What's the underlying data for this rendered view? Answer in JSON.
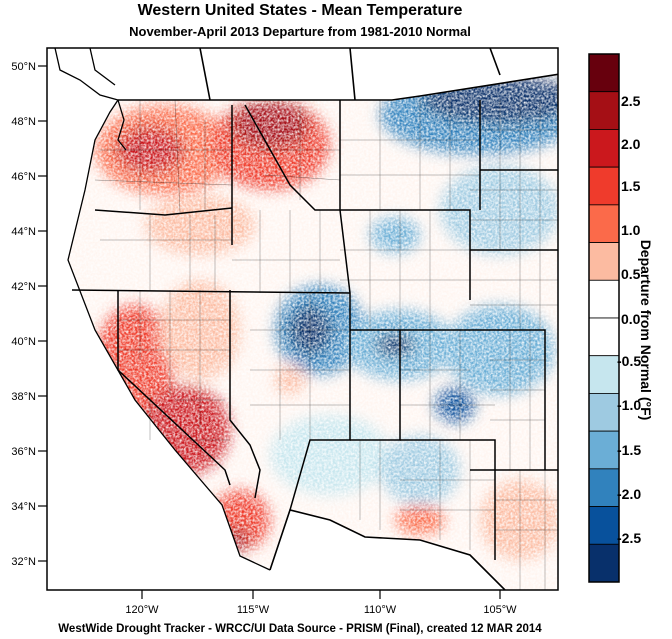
{
  "header": {
    "title": "Western United States - Mean Temperature",
    "subtitle": "November-April 2013  Departure from 1981-2010 Normal"
  },
  "footer": {
    "credit": "WestWide Drought Tracker - WRCC/UI  Data Source - PRISM (Final), created 12 MAR 2014"
  },
  "map": {
    "lat_labels": [
      "50°N",
      "48°N",
      "46°N",
      "44°N",
      "42°N",
      "40°N",
      "38°N",
      "36°N",
      "34°N",
      "32°N"
    ],
    "lon_labels": [
      "120°W",
      "115°W",
      "110°W",
      "105°W"
    ]
  },
  "legend": {
    "title": "Departure from Normal (°F)",
    "tick_labels": [
      "2.5",
      "2.0",
      "1.5",
      "1.0",
      "0.5",
      "0.0",
      "-0.5",
      "-1.0",
      "-1.5",
      "-2.0",
      "-2.5"
    ],
    "colors": [
      "#67000d",
      "#a50f15",
      "#cb181d",
      "#ef3b2c",
      "#fb6a4a",
      "#fcbba1",
      "#ffffff",
      "#ffffff",
      "#c6e6ee",
      "#9ecae1",
      "#6baed6",
      "#3182bd",
      "#08519c",
      "#08306b"
    ]
  }
}
